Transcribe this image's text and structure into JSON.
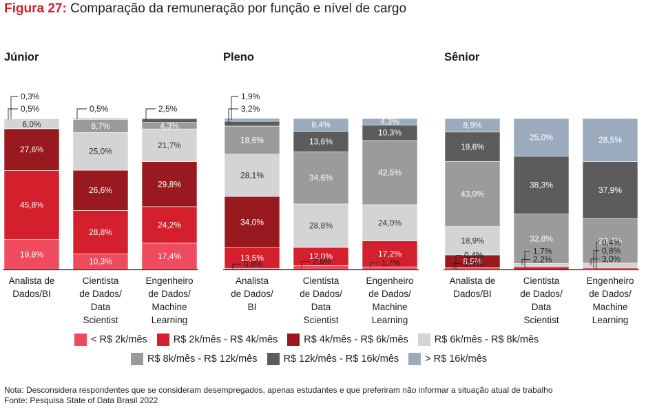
{
  "title": {
    "figure": "Figura 27:",
    "text": "Comparação da remuneração por função e nível de cargo"
  },
  "colors": {
    "c1": "#ee4b5f",
    "c2": "#d41f2d",
    "c3": "#98191e",
    "c4": "#d4d4d4",
    "c5": "#9b9b9b",
    "c6": "#5c5c5e",
    "c7": "#9aabbd"
  },
  "chart_data": {
    "type": "bar",
    "stacked": true,
    "normalized": true,
    "ylim": [
      0,
      100
    ],
    "unit": "%",
    "legend_position": "bottom",
    "series": [
      {
        "key": "c1",
        "name": "< R$ 2k/mês"
      },
      {
        "key": "c2",
        "name": "R$ 2k/mês - R$ 4k/mês"
      },
      {
        "key": "c3",
        "name": "R$ 4k/mês - R$ 6k/mês"
      },
      {
        "key": "c4",
        "name": "R$ 6k/mês - R$ 8k/mês"
      },
      {
        "key": "c5",
        "name": "R$ 8k/mês - R$ 12k/mês"
      },
      {
        "key": "c6",
        "name": "R$ 12k/mês - R$ 16k/mês"
      },
      {
        "key": "c7",
        "name": "> R$ 16k/mês"
      }
    ],
    "groups": [
      {
        "name": "Júnior",
        "bars": [
          {
            "category": "Analista de Dados/BI",
            "label_lines": [
              "Analista de",
              "Dados/BI"
            ],
            "values": [
              19.8,
              45.8,
              27.6,
              6.0,
              0.5,
              0.3,
              0.0
            ],
            "labels": [
              "19,8%",
              "45,8%",
              "27,6%",
              "6,0%",
              "0,5%",
              "0,3%",
              ""
            ]
          },
          {
            "category": "Cientista de Dados/Data Scientist",
            "label_lines": [
              "Cientista",
              "de Dados/",
              "Data",
              "Scientist"
            ],
            "values": [
              10.3,
              28.8,
              26.6,
              25.0,
              8.7,
              0.5,
              0.0
            ],
            "labels": [
              "10,3%",
              "28,8%",
              "26,6%",
              "25,0%",
              "8,7%",
              "0,5%",
              ""
            ]
          },
          {
            "category": "Engenheiro de Dados/Machine Learning",
            "label_lines": [
              "Engenheiro",
              "de Dados/",
              "Machine",
              "Learning"
            ],
            "values": [
              17.4,
              24.2,
              29.8,
              21.7,
              4.3,
              2.5,
              0.0
            ],
            "labels": [
              "17,4%",
              "24,2%",
              "29,8%",
              "21,7%",
              "4,3%",
              "2,5%",
              ""
            ]
          }
        ]
      },
      {
        "name": "Pleno",
        "bars": [
          {
            "category": "Analista de Dados/BI",
            "label_lines": [
              "Analista",
              "de Dados/",
              "BI"
            ],
            "values": [
              0.8,
              13.5,
              34.0,
              28.1,
              18.6,
              3.2,
              1.9
            ],
            "labels": [
              "0,8%",
              "13,5%",
              "34,0%",
              "28,1%",
              "18,6%",
              "3,2%",
              "1,9%"
            ]
          },
          {
            "category": "Cientista de Dados/Data Scientist",
            "label_lines": [
              "Cientista",
              "de Dados/",
              "Data",
              "Scientist"
            ],
            "values": [
              2.6,
              12.0,
              0.0,
              28.8,
              34.6,
              13.6,
              8.4
            ],
            "labels": [
              "2,6%",
              "12,0%",
              "",
              "28,8%",
              "34,6%",
              "13,6%",
              "8,4%"
            ]
          },
          {
            "category": "Engenheiro de Dados/Machine Learning",
            "label_lines": [
              "Engenheiro",
              "de Dados/",
              "Machine",
              "Learning"
            ],
            "values": [
              1.7,
              17.2,
              0.0,
              24.0,
              42.5,
              10.3,
              4.3
            ],
            "labels": [
              "1,7%",
              "17,2%",
              "",
              "24,0%",
              "42,5%",
              "10,3%",
              "4,3%"
            ]
          }
        ]
      },
      {
        "name": "Sênior",
        "bars": [
          {
            "category": "Analista de Dados/BI",
            "label_lines": [
              "Analista de",
              "Dados/BI"
            ],
            "values": [
              0.4,
              0.7,
              8.5,
              18.9,
              43.0,
              19.6,
              8.9
            ],
            "labels": [
              "0,4%",
              "0,7%",
              "8,5%",
              "18,9%",
              "43,0%",
              "19,6%",
              "8,9%"
            ]
          },
          {
            "category": "Cientista de Dados/Data Scientist",
            "label_lines": [
              "Cientista",
              "de Dados/",
              "Data",
              "Scientist"
            ],
            "values": [
              0.0,
              1.7,
              0.0,
              2.2,
              32.8,
              38.3,
              25.0
            ],
            "labels": [
              "",
              "1,7%",
              "",
              "2,2%",
              "32,8%",
              "38,3%",
              "25,0%"
            ]
          },
          {
            "category": "Engenheiro de Dados/Machine Learning",
            "label_lines": [
              "Engenheiro",
              "de Dados/",
              "Machine",
              "Learning"
            ],
            "values": [
              0.4,
              0.8,
              0.0,
              3.0,
              29.4,
              37.9,
              28.5
            ],
            "labels": [
              "0,4%",
              "0,8%",
              "",
              "3,0%",
              "29,4%",
              "37,9%",
              "28,5%"
            ]
          }
        ]
      }
    ]
  },
  "legend": {
    "row1": [
      "< R$ 2k/mês",
      "R$ 2k/mês - R$ 4k/mês",
      "R$ 4k/mês - R$ 6k/mês",
      "R$ 6k/mês - R$ 8k/mês"
    ],
    "row2": [
      "R$ 8k/mês - R$ 12k/mês",
      "R$ 12k/mês - R$ 16k/mês",
      "> R$ 16k/mês"
    ]
  },
  "notes": {
    "nota": "Nota: Desconsidera respondentes que se consideram desempregados, apenas estudantes e que preferiram não informar a situação atual de trabalho",
    "fonte": "Fonte: Pesquisa State of Data Brasil 2022"
  }
}
